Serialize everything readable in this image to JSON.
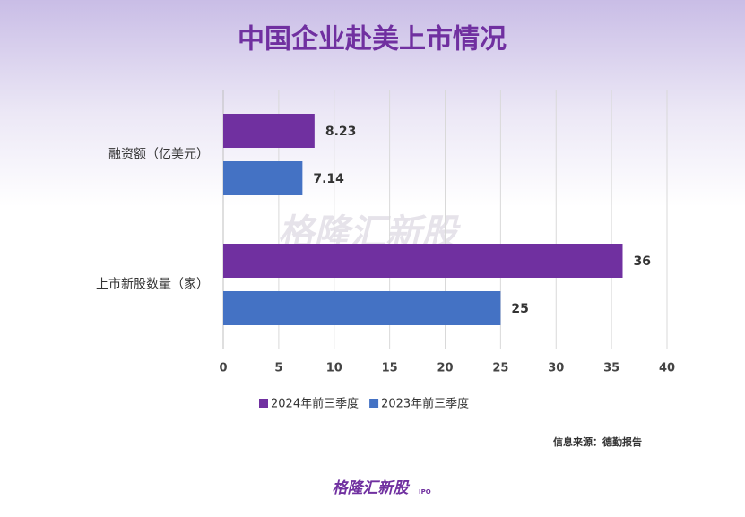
{
  "chart_data": {
    "type": "barh",
    "title": "中国企业赴美上市情况",
    "categories": [
      "融资额（亿美元）",
      "上市新股数量（家）"
    ],
    "series": [
      {
        "name": "2024年前三季度",
        "color": "#7030a0",
        "values": [
          8.23,
          36
        ]
      },
      {
        "name": "2023年前三季度",
        "color": "#4472c4",
        "values": [
          7.14,
          25
        ]
      }
    ],
    "xlim": [
      0,
      40
    ],
    "xticks": [
      0,
      5,
      10,
      15,
      20,
      25,
      30,
      35,
      40
    ],
    "grid": true,
    "legend": "bottom",
    "source": "信息来源：德勤报告",
    "watermark": "格隆汇新股",
    "brand": "格隆汇新股",
    "brand_tag": "IPO"
  }
}
